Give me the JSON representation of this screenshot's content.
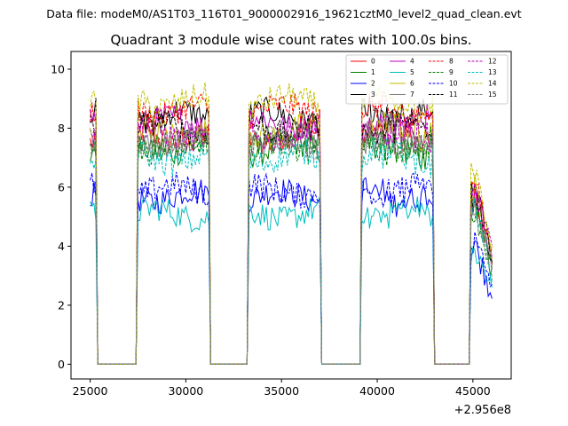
{
  "header_note": "Data file: modeM0/AS1T03_116T01_9000002916_19621cztM0_level2_quad_clean.evt",
  "chart_data": {
    "type": "line",
    "title": "Quadrant 3 module wise count rates with 100.0s bins.",
    "xlabel": "",
    "ylabel": "",
    "x_offset_label": "+2.956e8",
    "xlim": [
      24000,
      47000
    ],
    "ylim": [
      -0.5,
      10.6
    ],
    "xticks": [
      25000,
      30000,
      35000,
      40000,
      45000
    ],
    "xtick_labels": [
      "25000",
      "30000",
      "35000",
      "40000",
      "45000"
    ],
    "yticks": [
      0,
      2,
      4,
      6,
      8,
      10
    ],
    "ytick_labels": [
      "0",
      "2",
      "4",
      "6",
      "8",
      "10"
    ],
    "grid": false,
    "legend_position": "top-right",
    "segments": [
      {
        "start": 25000,
        "end": 25300
      },
      {
        "start": 27500,
        "end": 31200
      },
      {
        "start": 33300,
        "end": 37000
      },
      {
        "start": 39200,
        "end": 42900
      },
      {
        "start": 44900,
        "end": 46000
      }
    ],
    "series": [
      {
        "name": "0",
        "color": "#ff0000",
        "dash": "solid",
        "level": 7.7
      },
      {
        "name": "1",
        "color": "#008000",
        "dash": "solid",
        "level": 7.3
      },
      {
        "name": "2",
        "color": "#0000ff",
        "dash": "solid",
        "level": 5.7
      },
      {
        "name": "3",
        "color": "#000000",
        "dash": "solid",
        "level": 8.4
      },
      {
        "name": "4",
        "color": "#bf00bf",
        "dash": "solid",
        "level": 8.2
      },
      {
        "name": "5",
        "color": "#00bfbf",
        "dash": "solid",
        "level": 5.1
      },
      {
        "name": "6",
        "color": "#bfbf00",
        "dash": "solid",
        "level": 7.9
      },
      {
        "name": "7",
        "color": "#808080",
        "dash": "solid",
        "level": 7.6
      },
      {
        "name": "8",
        "color": "#ff0000",
        "dash": "dashed",
        "level": 8.6
      },
      {
        "name": "9",
        "color": "#008000",
        "dash": "dashed",
        "level": 7.4
      },
      {
        "name": "10",
        "color": "#0000ff",
        "dash": "dashed",
        "level": 5.9
      },
      {
        "name": "11",
        "color": "#000000",
        "dash": "dashed",
        "level": 8.0
      },
      {
        "name": "12",
        "color": "#bf00bf",
        "dash": "dashed",
        "level": 7.8
      },
      {
        "name": "13",
        "color": "#00bfbf",
        "dash": "dashed",
        "level": 7.0
      },
      {
        "name": "14",
        "color": "#bfbf00",
        "dash": "dashed",
        "level": 8.9
      },
      {
        "name": "15",
        "color": "#808080",
        "dash": "dashed",
        "level": 7.5
      }
    ]
  }
}
